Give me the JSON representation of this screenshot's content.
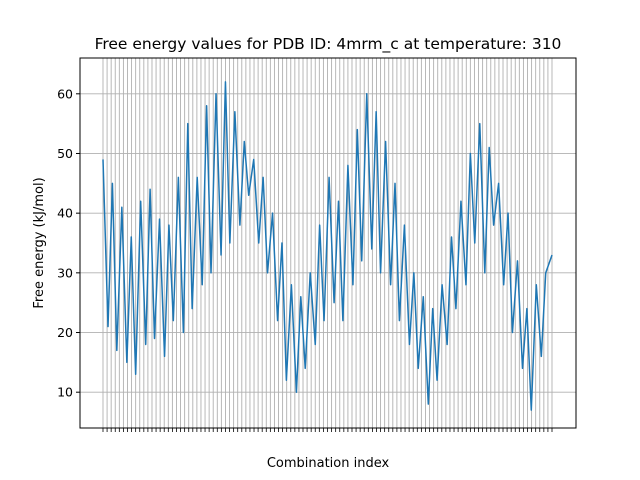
{
  "chart_data": {
    "type": "line",
    "title": "Free energy values for PDB ID: 4mrm_c at temperature: 310",
    "xlabel": "Combination index",
    "ylabel": "Free energy (kJ/mol)",
    "xlim": [
      0,
      715
    ],
    "ylim": [
      4,
      66
    ],
    "yticks": [
      10,
      20,
      30,
      40,
      50,
      60
    ],
    "grid": true,
    "legend": "none",
    "series_color": "#1f77b4",
    "grid_color": "#b0b0b0",
    "points": [
      [
        0,
        49
      ],
      [
        8,
        21
      ],
      [
        15,
        45
      ],
      [
        22,
        17
      ],
      [
        30,
        41
      ],
      [
        38,
        15
      ],
      [
        45,
        36
      ],
      [
        52,
        13
      ],
      [
        60,
        42
      ],
      [
        68,
        18
      ],
      [
        75,
        44
      ],
      [
        82,
        19
      ],
      [
        90,
        39
      ],
      [
        98,
        16
      ],
      [
        105,
        38
      ],
      [
        112,
        22
      ],
      [
        120,
        46
      ],
      [
        128,
        20
      ],
      [
        135,
        55
      ],
      [
        142,
        24
      ],
      [
        150,
        46
      ],
      [
        158,
        28
      ],
      [
        165,
        58
      ],
      [
        172,
        30
      ],
      [
        180,
        60
      ],
      [
        188,
        33
      ],
      [
        195,
        62
      ],
      [
        202,
        35
      ],
      [
        210,
        57
      ],
      [
        218,
        38
      ],
      [
        225,
        52
      ],
      [
        232,
        43
      ],
      [
        240,
        49
      ],
      [
        248,
        35
      ],
      [
        255,
        46
      ],
      [
        262,
        30
      ],
      [
        270,
        40
      ],
      [
        278,
        22
      ],
      [
        285,
        35
      ],
      [
        292,
        12
      ],
      [
        300,
        28
      ],
      [
        308,
        10
      ],
      [
        315,
        26
      ],
      [
        322,
        14
      ],
      [
        330,
        30
      ],
      [
        338,
        18
      ],
      [
        345,
        38
      ],
      [
        352,
        22
      ],
      [
        360,
        46
      ],
      [
        368,
        25
      ],
      [
        375,
        42
      ],
      [
        382,
        22
      ],
      [
        390,
        48
      ],
      [
        398,
        28
      ],
      [
        405,
        54
      ],
      [
        412,
        32
      ],
      [
        420,
        60
      ],
      [
        428,
        34
      ],
      [
        435,
        57
      ],
      [
        442,
        30
      ],
      [
        450,
        52
      ],
      [
        458,
        28
      ],
      [
        465,
        45
      ],
      [
        472,
        22
      ],
      [
        480,
        38
      ],
      [
        488,
        18
      ],
      [
        495,
        30
      ],
      [
        502,
        14
      ],
      [
        510,
        26
      ],
      [
        518,
        8
      ],
      [
        525,
        24
      ],
      [
        532,
        12
      ],
      [
        540,
        28
      ],
      [
        548,
        18
      ],
      [
        555,
        36
      ],
      [
        562,
        24
      ],
      [
        570,
        42
      ],
      [
        578,
        28
      ],
      [
        585,
        50
      ],
      [
        592,
        35
      ],
      [
        600,
        55
      ],
      [
        608,
        30
      ],
      [
        615,
        51
      ],
      [
        622,
        38
      ],
      [
        630,
        45
      ],
      [
        638,
        28
      ],
      [
        645,
        40
      ],
      [
        652,
        20
      ],
      [
        660,
        32
      ],
      [
        668,
        14
      ],
      [
        675,
        24
      ],
      [
        682,
        7
      ],
      [
        690,
        28
      ],
      [
        698,
        16
      ],
      [
        705,
        30
      ],
      [
        715,
        33
      ]
    ]
  }
}
